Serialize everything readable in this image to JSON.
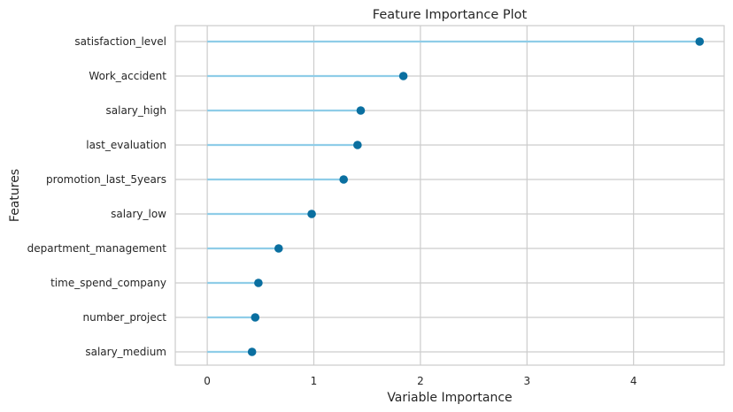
{
  "chart_data": {
    "type": "lollipop",
    "title": "Feature Importance Plot",
    "xlabel": "Variable Importance",
    "ylabel": "Features",
    "xlim": [
      -0.3,
      4.85
    ],
    "xticks": [
      0,
      1,
      2,
      3,
      4
    ],
    "grid": true,
    "categories": [
      "satisfaction_level",
      "Work_accident",
      "salary_high",
      "last_evaluation",
      "promotion_last_5years",
      "salary_low",
      "department_management",
      "time_spend_company",
      "number_project",
      "salary_medium"
    ],
    "values": [
      4.62,
      1.84,
      1.44,
      1.41,
      1.28,
      0.98,
      0.67,
      0.48,
      0.45,
      0.42
    ],
    "colors": {
      "stem": "#8fcde8",
      "marker": "#0a6fa0",
      "grid": "#cccccc",
      "frame": "#cccccc",
      "text": "#262626"
    }
  }
}
